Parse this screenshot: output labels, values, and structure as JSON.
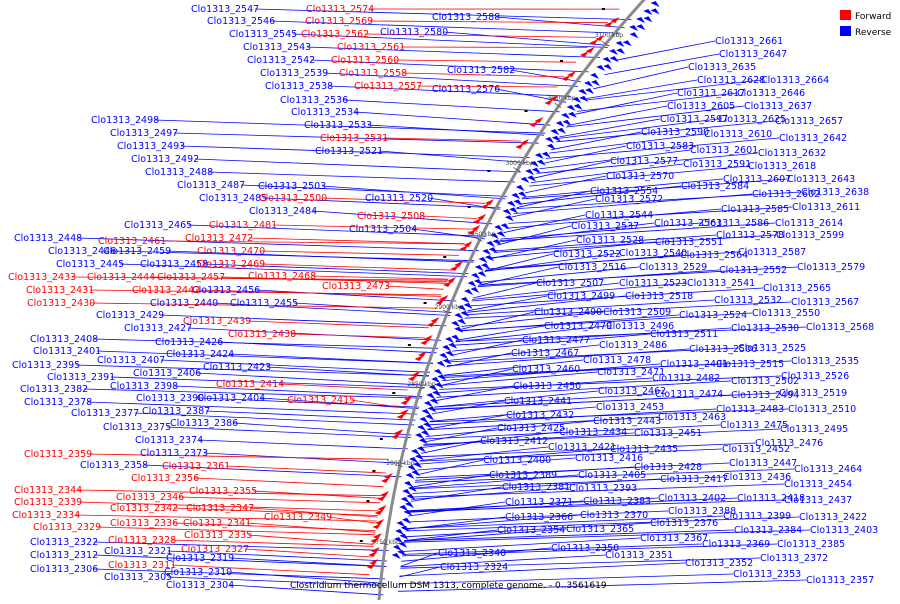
{
  "caption": "Clostridium thermocellum DSM 1313, complete genome. - 0..3561619",
  "legend": {
    "forward": {
      "label": "Forward",
      "color": "#ff0000"
    },
    "reverse": {
      "label": "Reverse",
      "color": "#0000ff"
    }
  },
  "ticks": [
    "3100 kbp",
    "3050 kbp",
    "3000 kbp",
    "2950 kbp",
    "2900 kbp",
    "2850 kbp",
    "2800 kbp",
    "2750 kbp"
  ],
  "labels_left_reverse": [
    "Clo1313_2547",
    "Clo1313_2546",
    "Clo1313_2545",
    "Clo1313_2543",
    "Clo1313_2542",
    "Clo1313_2539",
    "Clo1313_2538",
    "Clo1313_2536",
    "Clo1313_2534",
    "Clo1313_2533",
    "Clo1313_2521",
    "Clo1313_2498",
    "Clo1313_2497",
    "Clo1313_2493",
    "Clo1313_2492",
    "Clo1313_2488",
    "Clo1313_2487",
    "Clo1313_2503",
    "Clo1313_2485",
    "Clo1313_2520",
    "Clo1313_2484",
    "Clo1313_2504",
    "Clo1313_2465",
    "Clo1313_2448",
    "Clo1313_2446",
    "Clo1313_2459",
    "Clo1313_2445",
    "Clo1313_2458",
    "Clo1313_2456",
    "Clo1313_2440",
    "Clo1313_2455",
    "Clo1313_2429",
    "Clo1313_2427",
    "Clo1313_2408",
    "Clo1313_2426",
    "Clo1313_2401",
    "Clo1313_2424",
    "Clo1313_2395",
    "Clo1313_2407",
    "Clo1313_2423",
    "Clo1313_2391",
    "Clo1313_2406",
    "Clo1313_2382",
    "Clo1313_2398",
    "Clo1313_2378",
    "Clo1313_2390",
    "Clo1313_2404",
    "Clo1313_2377",
    "Clo1313_2387",
    "Clo1313_2375",
    "Clo1313_2386",
    "Clo1313_2374",
    "Clo1313_2373",
    "Clo1313_2358",
    "Clo1313_2322",
    "Clo1313_2321",
    "Clo1313_2312",
    "Clo1313_2319",
    "Clo1313_2306",
    "Clo1313_2310",
    "Clo1313_2305",
    "Clo1313_2304",
    "Clo1313_2580",
    "Clo1313_2588",
    "Clo1313_2582",
    "Clo1313_2576"
  ],
  "labels_left_forward": [
    "Clo1313_2574",
    "Clo1313_2569",
    "Clo1313_2562",
    "Clo1313_2561",
    "Clo1313_2560",
    "Clo1313_2558",
    "Clo1313_2557",
    "Clo1313_2531",
    "Clo1313_2500",
    "Clo1313_2508",
    "Clo1313_2481",
    "Clo1313_2472",
    "Clo1313_2461",
    "Clo1313_2470",
    "Clo1313_2469",
    "Clo1313_2433",
    "Clo1313_2444",
    "Clo1313_2457",
    "Clo1313_2468",
    "Clo1313_2431",
    "Clo1313_2442",
    "Clo1313_2473",
    "Clo1313_2430",
    "Clo1313_2439",
    "Clo1313_2438",
    "Clo1313_2414",
    "Clo1313_2415",
    "Clo1313_2359",
    "Clo1313_2361",
    "Clo1313_2356",
    "Clo1313_2344",
    "Clo1313_2355",
    "Clo1313_2339",
    "Clo1313_2346",
    "Clo1313_2342",
    "Clo1313_2347",
    "Clo1313_2334",
    "Clo1313_2336",
    "Clo1313_2341",
    "Clo1313_2349",
    "Clo1313_2329",
    "Clo1313_2335",
    "Clo1313_2328",
    "Clo1313_2327",
    "Clo1313_2311"
  ],
  "labels_right": [
    "Clo1313_2661",
    "Clo1313_2647",
    "Clo1313_2635",
    "Clo1313_2628",
    "Clo1313_2664",
    "Clo1313_2617",
    "Clo1313_2646",
    "Clo1313_2605",
    "Clo1313_2637",
    "Clo1313_2597",
    "Clo1313_2625",
    "Clo1313_2657",
    "Clo1313_2590",
    "Clo1313_2610",
    "Clo1313_2642",
    "Clo1313_2583",
    "Clo1313_2601",
    "Clo1313_2632",
    "Clo1313_2577",
    "Clo1313_2591",
    "Clo1313_2618",
    "Clo1313_2570",
    "Clo1313_2607",
    "Clo1313_2643",
    "Clo1313_2554",
    "Clo1313_2584",
    "Clo1313_2602",
    "Clo1313_2638",
    "Clo1313_2572",
    "Clo1313_2585",
    "Clo1313_2611",
    "Clo1313_2544",
    "Clo1313_2563",
    "Clo1313_2586",
    "Clo1313_2614",
    "Clo1313_2537",
    "Clo1313_2578",
    "Clo1313_2599",
    "Clo1313_2528",
    "Clo1313_2551",
    "Clo1313_2522",
    "Clo1313_2540",
    "Clo1313_2564",
    "Clo1313_2587",
    "Clo1313_2516",
    "Clo1313_2529",
    "Clo1313_2552",
    "Clo1313_2579",
    "Clo1313_2507",
    "Clo1313_2523",
    "Clo1313_2541",
    "Clo1313_2499",
    "Clo1313_2518",
    "Clo1313_2565",
    "Clo1313_2532",
    "Clo1313_2567",
    "Clo1313_2490",
    "Clo1313_2509",
    "Clo1313_2524",
    "Clo1313_2550",
    "Clo1313_2479",
    "Clo1313_2496",
    "Clo1313_2530",
    "Clo1313_2568",
    "Clo1313_2477",
    "Clo1313_2511",
    "Clo1313_2467",
    "Clo1313_2486",
    "Clo1313_2506",
    "Clo1313_2525",
    "Clo1313_2478",
    "Clo1313_2491",
    "Clo1313_2515",
    "Clo1313_2535",
    "Clo1313_2460",
    "Clo1313_2471",
    "Clo1313_2482",
    "Clo1313_2502",
    "Clo1313_2526",
    "Clo1313_2450",
    "Clo1313_2462",
    "Clo1313_2474",
    "Clo1313_2494",
    "Clo1313_2519",
    "Clo1313_2441",
    "Clo1313_2453",
    "Clo1313_2483",
    "Clo1313_2510",
    "Clo1313_2432",
    "Clo1313_2443",
    "Clo1313_2463",
    "Clo1313_2425",
    "Clo1313_2434",
    "Clo1313_2451",
    "Clo1313_2475",
    "Clo1313_2495",
    "Clo1313_2412",
    "Clo1313_2421",
    "Clo1313_2435",
    "Clo1313_2452",
    "Clo1313_2476",
    "Clo1313_2400",
    "Clo1313_2416",
    "Clo1313_2428",
    "Clo1313_2447",
    "Clo1313_2389",
    "Clo1313_2405",
    "Clo1313_2417",
    "Clo1313_2436",
    "Clo1313_2464",
    "Clo1313_2381",
    "Clo1313_2393",
    "Clo1313_2454",
    "Clo1313_2371",
    "Clo1313_2383",
    "Clo1313_2402",
    "Clo1313_2418",
    "Clo1313_2437",
    "Clo1313_2366",
    "Clo1313_2370",
    "Clo1313_2388",
    "Clo1313_2399",
    "Clo1313_2422",
    "Clo1313_2354",
    "Clo1313_2365",
    "Clo1313_2376",
    "Clo1313_2384",
    "Clo1313_2403",
    "Clo1313_2367",
    "Clo1313_2369",
    "Clo1313_2385",
    "Clo1313_2350",
    "Clo1313_2372",
    "Clo1313_2351",
    "Clo1313_2352",
    "Clo1313_2353",
    "Clo1313_2357",
    "Clo1313_2340",
    "Clo1313_2324"
  ]
}
